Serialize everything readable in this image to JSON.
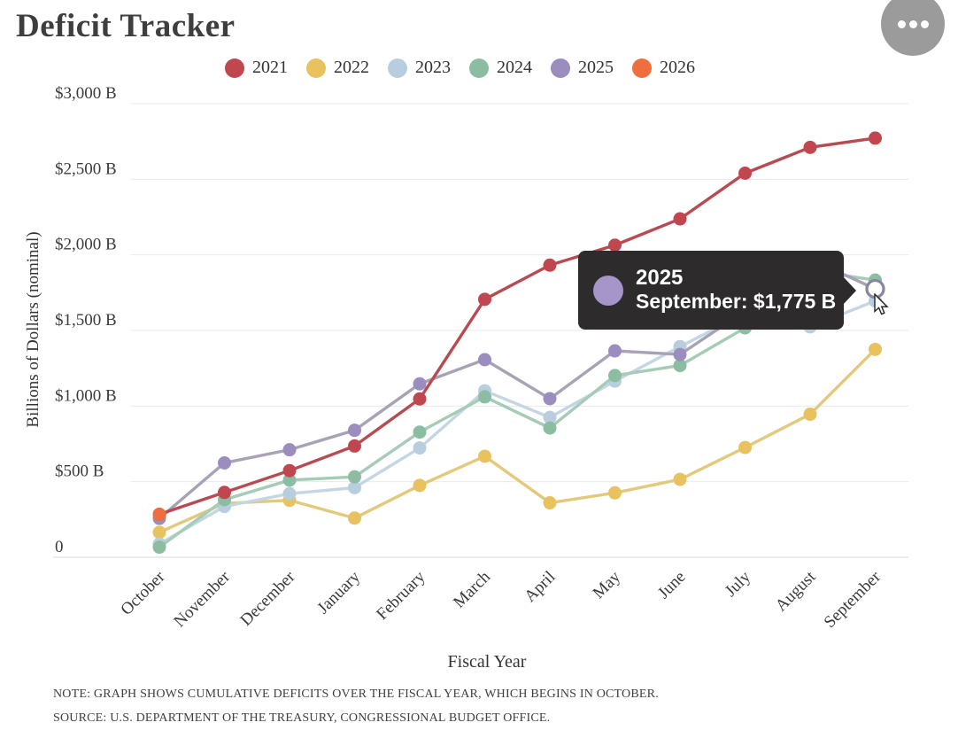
{
  "title": "Deficit Tracker",
  "menu_button": {
    "icon": "ellipsis"
  },
  "legend": [
    {
      "label": "2021",
      "color": "#c04750"
    },
    {
      "label": "2022",
      "color": "#e7c25f"
    },
    {
      "label": "2023",
      "color": "#b8cedf"
    },
    {
      "label": "2024",
      "color": "#8cbda2"
    },
    {
      "label": "2025",
      "color": "#9b8dbd"
    },
    {
      "label": "2026",
      "color": "#ef6e3d"
    }
  ],
  "chart_data": {
    "type": "line",
    "title": "Deficit Tracker",
    "xlabel": "Fiscal Year",
    "ylabel": "Billions of Dollars (nominal)",
    "categories": [
      "October",
      "November",
      "December",
      "January",
      "February",
      "March",
      "April",
      "May",
      "June",
      "July",
      "August",
      "September"
    ],
    "ylim": [
      0,
      3000
    ],
    "grid": true,
    "legend_position": "top",
    "yticks": [
      {
        "value": 3000,
        "label": "$3,000 B"
      },
      {
        "value": 2500,
        "label": "$2,500 B"
      },
      {
        "value": 2000,
        "label": "$2,000 B"
      },
      {
        "value": 1500,
        "label": "$1,500 B"
      },
      {
        "value": 1000,
        "label": "$1,000 B"
      },
      {
        "value": 500,
        "label": "$500 B"
      },
      {
        "value": 0,
        "label": "0"
      }
    ],
    "series": [
      {
        "name": "2021",
        "color": "#c04750",
        "line_color": "#b84b52",
        "z": 5,
        "values": [
          284,
          429,
          573,
          736,
          1047,
          1706,
          1932,
          2064,
          2238,
          2540,
          2711,
          2772
        ]
      },
      {
        "name": "2022",
        "color": "#e7c25f",
        "line_color": "#e3c97c",
        "z": 1,
        "values": [
          165,
          356,
          377,
          259,
          475,
          668,
          360,
          426,
          515,
          726,
          946,
          1375
        ]
      },
      {
        "name": "2023",
        "color": "#b8cedf",
        "line_color": "#c5d6e3",
        "z": 2,
        "values": [
          88,
          336,
          421,
          460,
          723,
          1101,
          925,
          1165,
          1393,
          1613,
          1524,
          1695
        ]
      },
      {
        "name": "2024",
        "color": "#8cbda2",
        "line_color": "#a6cbb7",
        "z": 3,
        "values": [
          67,
          381,
          510,
          532,
          828,
          1061,
          855,
          1202,
          1268,
          1517,
          1897,
          1833
        ]
      },
      {
        "name": "2025",
        "color": "#9b8dbd",
        "line_color": "#a8a2b4",
        "z": 4,
        "values": [
          257,
          624,
          711,
          840,
          1147,
          1307,
          1049,
          1365,
          1341,
          1629,
          1973,
          1775
        ]
      },
      {
        "name": "2026",
        "color": "#ef6e3d",
        "line_color": "#ef6e3d",
        "z": 6,
        "values": [
          284
        ]
      }
    ]
  },
  "tooltip": {
    "year": "2025",
    "dot_color": "#a595c9",
    "value_text": "September: $1,775 B",
    "highlight": {
      "series": "2025",
      "month": "September",
      "value": 1775
    }
  },
  "footer": {
    "note": "NOTE: GRAPH SHOWS CUMULATIVE DEFICITS OVER THE FISCAL YEAR, WHICH BEGINS IN OCTOBER.",
    "source": "SOURCE: U.S. DEPARTMENT OF THE TREASURY, CONGRESSIONAL BUDGET OFFICE."
  }
}
